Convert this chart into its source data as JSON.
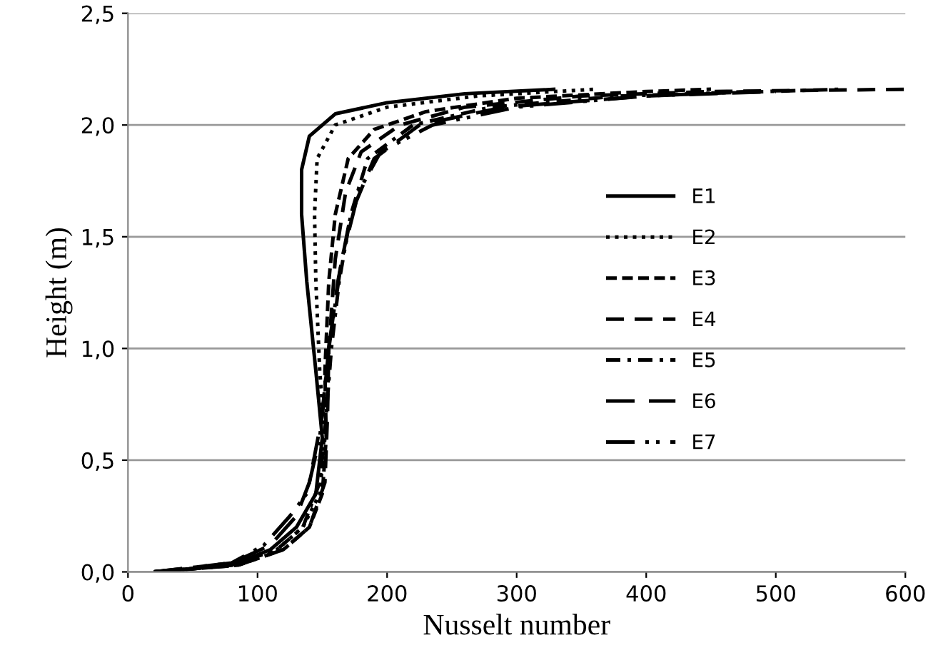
{
  "chart_data": {
    "type": "line",
    "xlabel": "Nusselt number",
    "ylabel": "Height (m)",
    "xlim": [
      0,
      600
    ],
    "xticks": [
      0,
      100,
      200,
      300,
      400,
      500,
      600
    ],
    "ylim": [
      0,
      2.5
    ],
    "yticks": [
      {
        "value": 0,
        "label": "0,0"
      },
      {
        "value": 0.5,
        "label": "0,5"
      },
      {
        "value": 1.0,
        "label": "1,0"
      },
      {
        "value": 1.5,
        "label": "1,5"
      },
      {
        "value": 2.0,
        "label": "2,0"
      },
      {
        "value": 2.5,
        "label": "2,5"
      }
    ],
    "grid": "y",
    "legend": "right",
    "marker": "none",
    "series": [
      {
        "name": "E1",
        "color": "#000000",
        "line_style": "solid",
        "x": [
          20,
          80,
          110,
          130,
          145,
          150,
          145,
          138,
          134,
          134,
          140,
          160,
          200,
          260,
          330
        ],
        "values": [
          0,
          0.03,
          0.1,
          0.2,
          0.35,
          0.6,
          0.9,
          1.3,
          1.6,
          1.8,
          1.95,
          2.05,
          2.1,
          2.14,
          2.16
        ]
      },
      {
        "name": "E2",
        "color": "#000000",
        "line_style": "dotted",
        "x": [
          20,
          80,
          115,
          135,
          148,
          152,
          148,
          145,
          144,
          146,
          160,
          200,
          270,
          360
        ],
        "values": [
          0,
          0.03,
          0.1,
          0.2,
          0.35,
          0.6,
          0.9,
          1.3,
          1.6,
          1.85,
          2.0,
          2.08,
          2.13,
          2.16
        ]
      },
      {
        "name": "E3",
        "color": "#000000",
        "line_style": "dashed",
        "x": [
          20,
          85,
          120,
          140,
          150,
          153,
          152,
          155,
          160,
          170,
          190,
          230,
          300,
          400,
          450
        ],
        "values": [
          0,
          0.03,
          0.1,
          0.2,
          0.35,
          0.6,
          0.9,
          1.3,
          1.6,
          1.85,
          1.98,
          2.06,
          2.12,
          2.15,
          2.16
        ]
      },
      {
        "name": "E4",
        "color": "#000000",
        "line_style": "dashed",
        "x": [
          20,
          85,
          120,
          140,
          152,
          154,
          155,
          160,
          168,
          180,
          210,
          260,
          350,
          450,
          600
        ],
        "values": [
          0,
          0.03,
          0.1,
          0.2,
          0.4,
          0.7,
          1.0,
          1.4,
          1.7,
          1.88,
          2.0,
          2.08,
          2.13,
          2.15,
          2.16
        ]
      },
      {
        "name": "E5",
        "color": "#000000",
        "line_style": "dashed",
        "x": [
          20,
          80,
          115,
          135,
          148,
          153,
          157,
          163,
          172,
          185,
          220,
          280,
          380,
          550
        ],
        "values": [
          0,
          0.03,
          0.1,
          0.2,
          0.4,
          0.7,
          1.0,
          1.3,
          1.6,
          1.85,
          2.0,
          2.08,
          2.13,
          2.16
        ]
      },
      {
        "name": "E6",
        "color": "#000000",
        "line_style": "dashed",
        "x": [
          20,
          80,
          110,
          130,
          140,
          150,
          155,
          162,
          172,
          190,
          225,
          290,
          400,
          500
        ],
        "values": [
          0,
          0.04,
          0.12,
          0.25,
          0.4,
          0.7,
          1.0,
          1.3,
          1.6,
          1.85,
          2.0,
          2.08,
          2.13,
          2.15
        ]
      },
      {
        "name": "E7",
        "color": "#000000",
        "line_style": "dashed",
        "x": [
          20,
          80,
          105,
          125,
          138,
          148,
          155,
          165,
          178,
          195,
          235,
          300,
          400,
          480
        ],
        "values": [
          0,
          0.04,
          0.12,
          0.25,
          0.35,
          0.6,
          1.0,
          1.4,
          1.7,
          1.88,
          2.0,
          2.08,
          2.13,
          2.15
        ]
      }
    ]
  }
}
